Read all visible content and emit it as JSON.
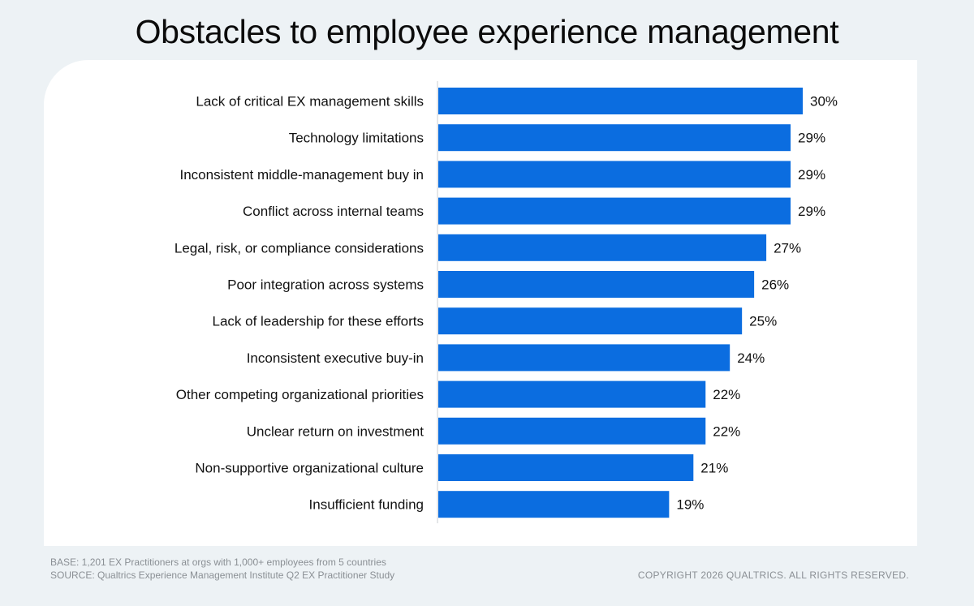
{
  "colors": {
    "bar": "#0b6de0",
    "background": "#edf2f5",
    "panel": "#ffffff",
    "text": "#111111",
    "footnote": "#8a8f94"
  },
  "chart_data": {
    "type": "bar",
    "orientation": "horizontal",
    "title": "Obstacles to employee experience management",
    "categories": [
      "Lack of critical EX management skills",
      "Technology limitations",
      "Inconsistent middle-management buy in",
      "Conflict across internal teams",
      "Legal, risk, or compliance considerations",
      "Poor integration across systems",
      "Lack of leadership for these efforts",
      "Inconsistent executive buy-in",
      "Other competing organizational priorities",
      "Unclear return on investment",
      "Non-supportive organizational culture",
      "Insufficient funding"
    ],
    "values": [
      30,
      29,
      29,
      29,
      27,
      26,
      25,
      24,
      22,
      22,
      21,
      19
    ],
    "value_labels": [
      "30%",
      "29%",
      "29%",
      "29%",
      "27%",
      "26%",
      "25%",
      "24%",
      "22%",
      "22%",
      "21%",
      "19%"
    ],
    "unit": "%",
    "xlim": [
      0,
      30
    ],
    "grid": false
  },
  "footer": {
    "base": "BASE: 1,201 EX Practitioners at orgs with 1,000+ employees from 5 countries",
    "source": "SOURCE: Qualtrics Experience Management Institute Q2 EX Practitioner Study",
    "copyright": "COPYRIGHT 2026 QUALTRICS. ALL RIGHTS RESERVED."
  }
}
